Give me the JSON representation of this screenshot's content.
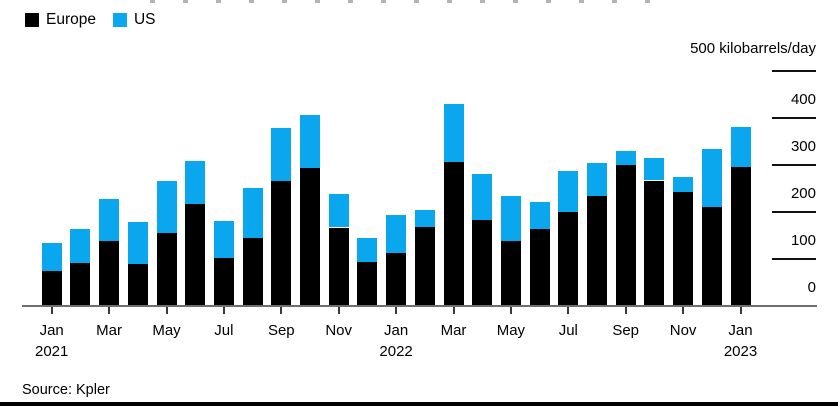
{
  "page": {
    "background": "#ffffff"
  },
  "legend": {
    "items": [
      {
        "label": "Europe",
        "color": "#000000"
      },
      {
        "label": "US",
        "color": "#0aa7ee"
      }
    ]
  },
  "y_axis_unit_label": "500 kilobarrels/day",
  "source_note": "Source: Kpler",
  "chart_data": {
    "type": "bar",
    "stacked": true,
    "title": "",
    "xlabel": "",
    "ylabel": "kilobarrels/day",
    "ylim": [
      0,
      500
    ],
    "y_ticks": [
      0,
      100,
      200,
      300,
      400,
      500
    ],
    "y_tick_text": [
      "0",
      "100",
      "200",
      "300",
      "400"
    ],
    "axis_side": "right",
    "grid": false,
    "legend_position": "top-left",
    "categories": [
      "Jan 2021",
      "Feb 2021",
      "Mar 2021",
      "Apr 2021",
      "May 2021",
      "Jun 2021",
      "Jul 2021",
      "Aug 2021",
      "Sep 2021",
      "Oct 2021",
      "Nov 2021",
      "Dec 2021",
      "Jan 2022",
      "Feb 2022",
      "Mar 2022",
      "Apr 2022",
      "May 2022",
      "Jun 2022",
      "Jul 2022",
      "Aug 2022",
      "Sep 2022",
      "Oct 2022",
      "Nov 2022",
      "Dec 2022",
      "Jan 2023"
    ],
    "x_tick_labels": [
      {
        "index": 0,
        "month": "Jan",
        "year": "2021"
      },
      {
        "index": 2,
        "month": "Mar",
        "year": ""
      },
      {
        "index": 4,
        "month": "May",
        "year": ""
      },
      {
        "index": 6,
        "month": "Jul",
        "year": ""
      },
      {
        "index": 8,
        "month": "Sep",
        "year": ""
      },
      {
        "index": 10,
        "month": "Nov",
        "year": ""
      },
      {
        "index": 12,
        "month": "Jan",
        "year": "2022"
      },
      {
        "index": 14,
        "month": "Mar",
        "year": ""
      },
      {
        "index": 16,
        "month": "May",
        "year": ""
      },
      {
        "index": 18,
        "month": "Jul",
        "year": ""
      },
      {
        "index": 20,
        "month": "Sep",
        "year": ""
      },
      {
        "index": 22,
        "month": "Nov",
        "year": ""
      },
      {
        "index": 24,
        "month": "Jan",
        "year": "2023"
      }
    ],
    "series": [
      {
        "name": "Europe",
        "color": "#000000",
        "values": [
          75,
          92,
          138,
          90,
          155,
          218,
          103,
          144,
          266,
          294,
          167,
          93,
          112,
          169,
          306,
          184,
          138,
          164,
          201,
          234,
          299,
          267,
          243,
          210,
          296
        ]
      },
      {
        "name": "US",
        "color": "#0aa7ee",
        "values": [
          58,
          72,
          89,
          88,
          111,
          91,
          78,
          107,
          112,
          113,
          71,
          52,
          82,
          35,
          124,
          97,
          96,
          57,
          86,
          70,
          31,
          47,
          31,
          123,
          85
        ]
      }
    ]
  }
}
